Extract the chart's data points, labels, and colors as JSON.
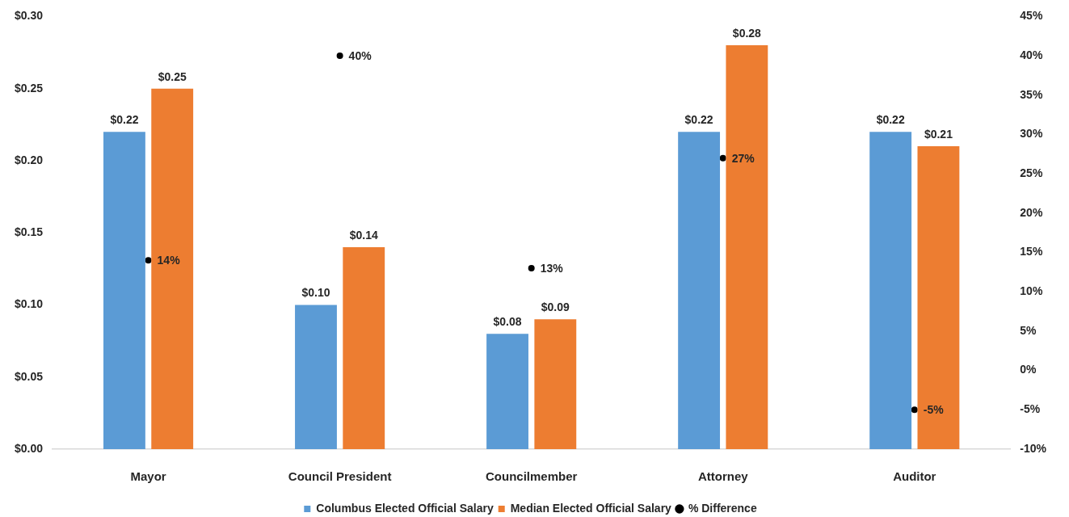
{
  "chart_data": {
    "type": "bar",
    "categories": [
      "Mayor",
      "Council President",
      "Councilmember",
      "Attorney",
      "Auditor"
    ],
    "series": [
      {
        "name": "Columbus Elected Official Salary",
        "color": "#5b9bd5",
        "values": [
          0.22,
          0.1,
          0.08,
          0.22,
          0.22
        ],
        "value_labels": [
          "$0.22",
          "$0.10",
          "$0.08",
          "$0.22",
          "$0.22"
        ]
      },
      {
        "name": "Median Elected Official Salary",
        "color": "#ed7d31",
        "values": [
          0.25,
          0.14,
          0.09,
          0.28,
          0.21
        ],
        "value_labels": [
          "$0.25",
          "$0.14",
          "$0.09",
          "$0.28",
          "$0.21"
        ]
      },
      {
        "name": "% Difference",
        "type": "scatter",
        "axis": "y2",
        "color": "#000000",
        "x": [
          "Mayor",
          "Council President",
          "Councilmember",
          "Attorney",
          "Auditor"
        ],
        "values": [
          14,
          40,
          13,
          27,
          -5
        ],
        "value_labels": [
          "14%",
          "40%",
          "13%",
          "27%",
          "-5%"
        ]
      }
    ],
    "ylim": [
      0,
      0.3
    ],
    "yticks": [
      {
        "value": 0,
        "label": "$0.00"
      },
      {
        "value": 0.05,
        "label": "$0.05"
      },
      {
        "value": 0.1,
        "label": "$0.10"
      },
      {
        "value": 0.15,
        "label": "$0.15"
      },
      {
        "value": 0.2,
        "label": "$0.20"
      },
      {
        "value": 0.25,
        "label": "$0.25"
      },
      {
        "value": 0.3,
        "label": "$0.30"
      }
    ],
    "y2lim": [
      -10,
      45
    ],
    "y2ticks": [
      {
        "value": -10,
        "label": "-10%"
      },
      {
        "value": -5,
        "label": "-5%"
      },
      {
        "value": 0,
        "label": "0%"
      },
      {
        "value": 5,
        "label": "5%"
      },
      {
        "value": 10,
        "label": "10%"
      },
      {
        "value": 15,
        "label": "15%"
      },
      {
        "value": 20,
        "label": "20%"
      },
      {
        "value": 25,
        "label": "25%"
      },
      {
        "value": 30,
        "label": "30%"
      },
      {
        "value": 35,
        "label": "35%"
      },
      {
        "value": 40,
        "label": "40%"
      },
      {
        "value": 45,
        "label": "45%"
      }
    ],
    "legend": "bottom",
    "marker": "circle"
  }
}
